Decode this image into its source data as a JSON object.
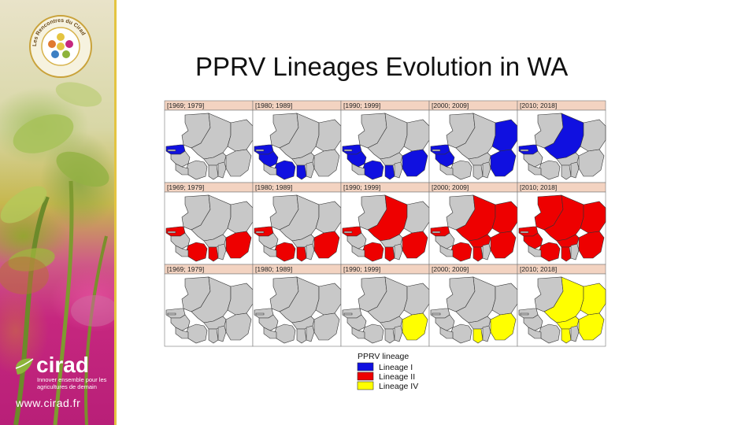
{
  "slide": {
    "title": "PPRV Lineages Evolution in WA"
  },
  "branding": {
    "logo_ring_text": "Les Rencontres du Cirad",
    "cirad_name": "cirad",
    "cirad_tagline": "Innover ensemble pour les agricultures de demain",
    "cirad_url": "www.cirad.fr",
    "colors": {
      "magenta": "#c6277f",
      "gold": "#e4c441",
      "green": "#8db33a"
    }
  },
  "map_figure": {
    "period_labels": [
      "[1969; 1979]",
      "[1980; 1989]",
      "[1990; 1999]",
      "[2000; 2009]",
      "[2010; 2018]"
    ],
    "rows": [
      {
        "lineage": "Lineage I",
        "color": "#1010e0",
        "presence": [
          [
            "Senegal"
          ],
          [
            "Senegal",
            "Guinea",
            "Cote d'Ivoire",
            "Ghana"
          ],
          [
            "Senegal",
            "Guinea",
            "Cote d'Ivoire",
            "Ghana",
            "Nigeria"
          ],
          [
            "Senegal",
            "Guinea",
            "Niger",
            "Nigeria"
          ],
          [
            "Mali",
            "Senegal"
          ]
        ]
      },
      {
        "lineage": "Lineage II",
        "color": "#ee0000",
        "presence": [
          [
            "Senegal",
            "Cote d'Ivoire",
            "Ghana",
            "Nigeria"
          ],
          [
            "Senegal",
            "Cote d'Ivoire",
            "Ghana",
            "Nigeria"
          ],
          [
            "Senegal",
            "Mali",
            "Cote d'Ivoire",
            "Ghana",
            "Nigeria"
          ],
          [
            "Mali",
            "Niger",
            "Burkina Faso",
            "Nigeria",
            "Ghana",
            "Cote d'Ivoire",
            "Senegal"
          ],
          [
            "Mali",
            "Niger",
            "Burkina Faso",
            "Nigeria",
            "Ghana",
            "Cote d'Ivoire",
            "Senegal",
            "Guinea",
            "Mauritania"
          ]
        ]
      },
      {
        "lineage": "Lineage IV",
        "color": "#ffff00",
        "presence": [
          [],
          [],
          [
            "Nigeria"
          ],
          [
            "Nigeria",
            "Ghana"
          ],
          [
            "Mali",
            "Niger",
            "Nigeria",
            "Burkina Faso",
            "Ghana"
          ]
        ]
      }
    ],
    "legend": {
      "title": "PPRV lineage",
      "items": [
        {
          "label": "Lineage I",
          "color": "#1010e0"
        },
        {
          "label": "Lineage II",
          "color": "#ee0000"
        },
        {
          "label": "Lineage IV",
          "color": "#ffff00"
        }
      ]
    },
    "base_color": "#c8c8c8",
    "header_color": "#f3d3c1"
  }
}
